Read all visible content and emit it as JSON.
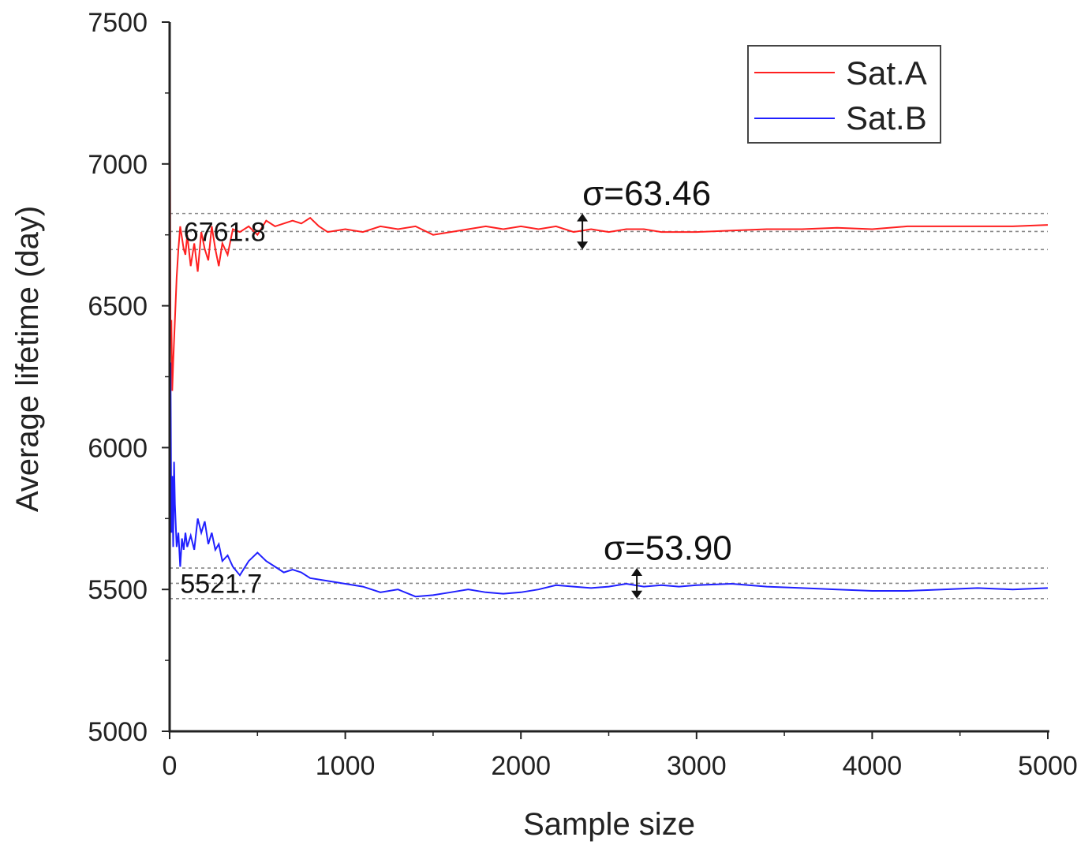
{
  "chart_data": {
    "type": "line",
    "title": "",
    "xlabel": "Sample size",
    "ylabel": "Average lifetime (day)",
    "xlim": [
      0,
      5000
    ],
    "ylim": [
      5000,
      7500
    ],
    "xticks": [
      0,
      1000,
      2000,
      3000,
      4000,
      5000
    ],
    "yticks": [
      5000,
      5500,
      6000,
      6500,
      7000,
      7500
    ],
    "grid": false,
    "legend_position": "top-right",
    "colors": {
      "satA": "#ff2020",
      "satB": "#2020ff",
      "ref": "#888888",
      "axis": "#222222"
    },
    "series": [
      {
        "name": "Sat.A",
        "x": [
          1,
          5,
          10,
          15,
          20,
          30,
          40,
          50,
          60,
          70,
          80,
          90,
          100,
          120,
          140,
          160,
          180,
          200,
          220,
          240,
          260,
          280,
          300,
          330,
          360,
          400,
          450,
          500,
          550,
          600,
          650,
          700,
          750,
          800,
          850,
          900,
          1000,
          1100,
          1200,
          1300,
          1400,
          1500,
          1600,
          1700,
          1800,
          1900,
          2000,
          2100,
          2200,
          2300,
          2400,
          2500,
          2600,
          2700,
          2800,
          2900,
          3000,
          3200,
          3400,
          3600,
          3800,
          4000,
          4200,
          4400,
          4600,
          4800,
          5000
        ],
        "values": [
          7500,
          6400,
          6450,
          6200,
          6300,
          6450,
          6600,
          6700,
          6780,
          6740,
          6700,
          6680,
          6750,
          6640,
          6720,
          6620,
          6760,
          6700,
          6660,
          6780,
          6700,
          6640,
          6720,
          6680,
          6770,
          6760,
          6780,
          6750,
          6800,
          6780,
          6790,
          6800,
          6790,
          6810,
          6780,
          6760,
          6770,
          6760,
          6780,
          6770,
          6780,
          6750,
          6760,
          6770,
          6780,
          6770,
          6780,
          6770,
          6780,
          6760,
          6770,
          6760,
          6770,
          6770,
          6760,
          6760,
          6760,
          6765,
          6770,
          6770,
          6775,
          6770,
          6780,
          6780,
          6780,
          6780,
          6785
        ]
      },
      {
        "name": "Sat.B",
        "x": [
          1,
          5,
          10,
          15,
          20,
          25,
          30,
          40,
          50,
          60,
          70,
          80,
          90,
          100,
          120,
          140,
          160,
          180,
          200,
          220,
          240,
          260,
          280,
          300,
          330,
          360,
          400,
          450,
          500,
          550,
          600,
          650,
          700,
          750,
          800,
          900,
          1000,
          1100,
          1200,
          1300,
          1400,
          1500,
          1600,
          1700,
          1800,
          1900,
          2000,
          2100,
          2200,
          2300,
          2400,
          2500,
          2600,
          2700,
          2800,
          2900,
          3000,
          3200,
          3400,
          3600,
          3800,
          4000,
          4200,
          4400,
          4600,
          4800,
          5000
        ],
        "values": [
          5350,
          6300,
          5700,
          5900,
          5650,
          5950,
          5800,
          5650,
          5700,
          5580,
          5680,
          5640,
          5700,
          5650,
          5690,
          5640,
          5750,
          5700,
          5740,
          5660,
          5700,
          5640,
          5660,
          5600,
          5620,
          5580,
          5550,
          5600,
          5630,
          5600,
          5580,
          5560,
          5570,
          5560,
          5540,
          5530,
          5520,
          5510,
          5490,
          5500,
          5475,
          5480,
          5490,
          5500,
          5490,
          5485,
          5490,
          5500,
          5515,
          5510,
          5505,
          5510,
          5520,
          5510,
          5515,
          5510,
          5515,
          5520,
          5510,
          5505,
          5500,
          5495,
          5495,
          5500,
          5505,
          5500,
          5505
        ]
      }
    ],
    "reference_lines": [
      {
        "series": "Sat.A",
        "mean": 6761.8,
        "upper": 6825.26,
        "lower": 6698.34
      },
      {
        "series": "Sat.B",
        "mean": 5521.7,
        "upper": 5575.6,
        "lower": 5467.8
      }
    ],
    "annotations": [
      {
        "text": "σ=63.46",
        "x": 2350,
        "y": 6900,
        "arrow_x": 2350,
        "arrow_from": 6825.26,
        "arrow_to": 6698.34
      },
      {
        "text": "σ=53.90",
        "x": 2470,
        "y": 5650,
        "arrow_x": 2660,
        "arrow_from": 5575.6,
        "arrow_to": 5467.8
      }
    ],
    "mean_labels": [
      {
        "text": "6761.8",
        "x": 80,
        "y": 6761.8
      },
      {
        "text": "5521.7",
        "x": 60,
        "y": 5521.7
      }
    ]
  }
}
